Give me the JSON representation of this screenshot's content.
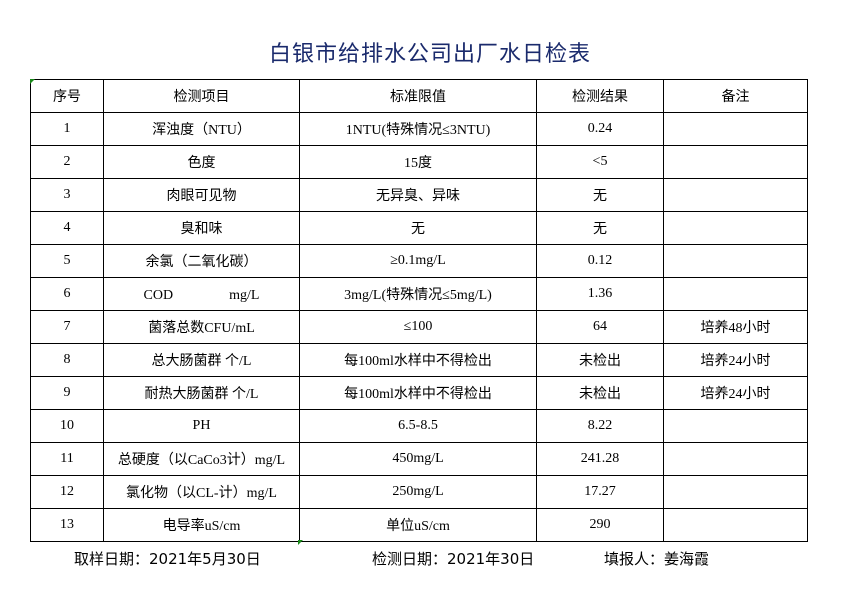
{
  "title": "白银市给排水公司出厂水日检表",
  "headers": [
    "序号",
    "检测项目",
    "标准限值",
    "检测结果",
    "备注"
  ],
  "rows": [
    [
      "1",
      "浑浊度（NTU）",
      "1NTU(特殊情况≤3NTU)",
      "0.24",
      ""
    ],
    [
      "2",
      "色度",
      "15度",
      "<5",
      ""
    ],
    [
      "3",
      "肉眼可见物",
      "无异臭、异味",
      "无",
      ""
    ],
    [
      "4",
      "臭和味",
      "无",
      "无",
      ""
    ],
    [
      "5",
      "余氯（二氧化碳）",
      "≥0.1mg/L",
      "0.12",
      ""
    ],
    [
      "6",
      "COD　　　　mg/L",
      "3mg/L(特殊情况≤5mg/L)",
      "1.36",
      ""
    ],
    [
      "7",
      "菌落总数CFU/mL",
      "≤100",
      "64",
      "培养48小时"
    ],
    [
      "8",
      "总大肠菌群 个/L",
      "每100ml水样中不得检出",
      "未检出",
      "培养24小时"
    ],
    [
      "9",
      "耐热大肠菌群 个/L",
      "每100ml水样中不得检出",
      "未检出",
      "培养24小时"
    ],
    [
      "10",
      "PH",
      "6.5-8.5",
      "8.22",
      ""
    ],
    [
      "11",
      "总硬度（以CaCo3计）mg/L",
      "450mg/L",
      "241.28",
      ""
    ],
    [
      "12",
      "氯化物（以CL-计）mg/L",
      "250mg/L",
      "17.27",
      ""
    ],
    [
      "13",
      "电导率uS/cm",
      "单位uS/cm",
      "290",
      ""
    ]
  ],
  "footer": {
    "sample_date": "取样日期：2021年5月30日",
    "test_date": "检测日期：2021年30日",
    "reporter": "填报人：姜海霞"
  },
  "colors": {
    "title": "#1a2a6c",
    "cell_marker": "#1a8a1a"
  }
}
